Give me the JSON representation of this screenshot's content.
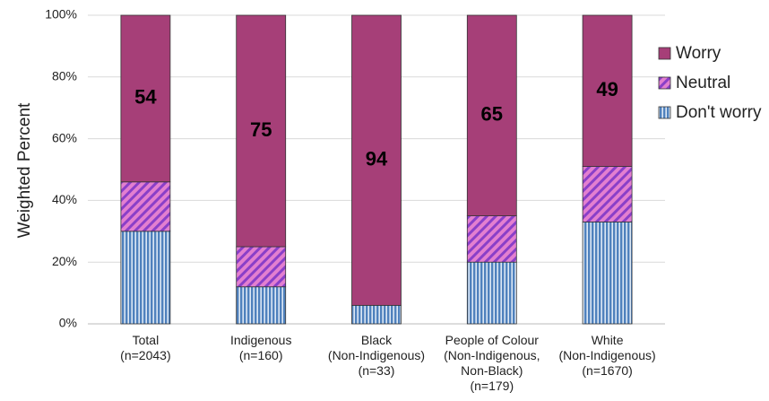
{
  "chart_data": {
    "type": "stacked_bar",
    "y_label": "Weighted Percent",
    "categories": [
      [
        "Total",
        "(n=2043)"
      ],
      [
        "Indigenous",
        "(n=160)"
      ],
      [
        "Black",
        "(Non-Indigenous)",
        "(n=33)"
      ],
      [
        "People of Colour",
        "(Non-Indigenous,",
        "Non-Black)",
        "(n=179)"
      ],
      [
        "White",
        "(Non-Indigenous)",
        "(n=1670)"
      ]
    ],
    "series": [
      {
        "name": "Don't worry",
        "color": "#4f81bd",
        "pattern": "vertical",
        "values": [
          30,
          12,
          6,
          20,
          33
        ]
      },
      {
        "name": "Neutral",
        "color": "#8a3fc8",
        "pattern": "diagonal",
        "values": [
          16,
          13,
          0,
          15,
          18
        ]
      },
      {
        "name": "Worry",
        "color": "#a63f78",
        "pattern": "solid",
        "values": [
          54,
          75,
          94,
          65,
          49
        ],
        "show_labels": true
      }
    ],
    "ylim": [
      0,
      100
    ],
    "yticks": [
      {
        "value": 0,
        "label": "0%"
      },
      {
        "value": 20,
        "label": "20%"
      },
      {
        "value": 40,
        "label": "40%"
      },
      {
        "value": 60,
        "label": "60%"
      },
      {
        "value": 80,
        "label": "80%"
      },
      {
        "value": 100,
        "label": "100%"
      }
    ],
    "grid": true,
    "legend": "right"
  }
}
